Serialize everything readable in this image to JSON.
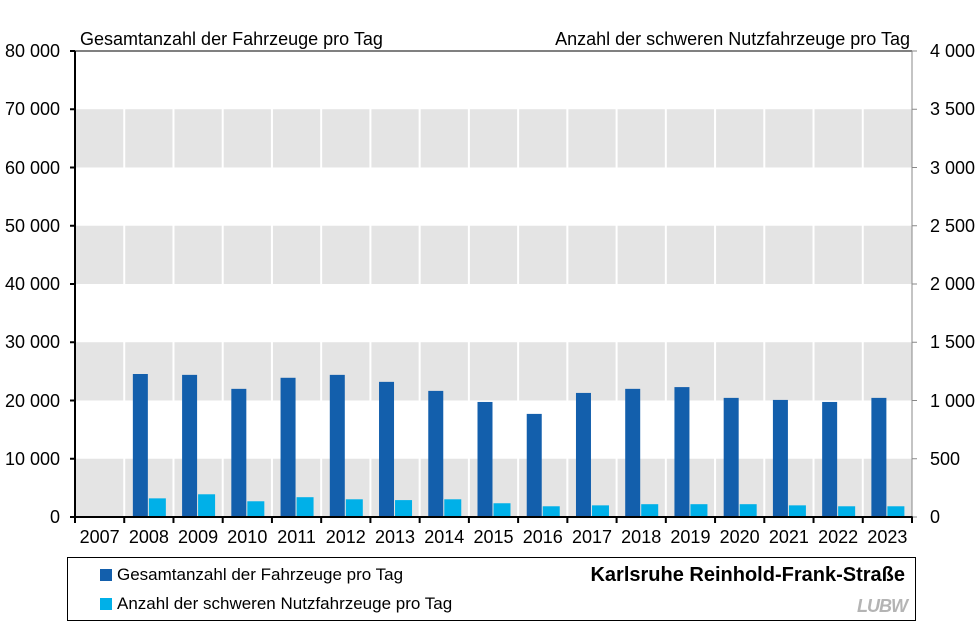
{
  "chart_data": {
    "type": "bar",
    "title_left": "Gesamtanzahl der Fahrzeuge pro Tag",
    "title_right": "Anzahl der schweren Nutzfahrzeuge pro Tag",
    "location": "Karlsruhe Reinhold-Frank-Straße",
    "categories": [
      "2007",
      "2008",
      "2009",
      "2010",
      "2011",
      "2012",
      "2013",
      "2014",
      "2015",
      "2016",
      "2017",
      "2018",
      "2019",
      "2020",
      "2021",
      "2022",
      "2023"
    ],
    "series": [
      {
        "name": "Gesamtanzahl der Fahrzeuge pro Tag",
        "axis": "left",
        "color": "#135fac",
        "values": [
          null,
          24550,
          24400,
          22000,
          23900,
          24400,
          23200,
          21650,
          19750,
          17700,
          21300,
          22000,
          22300,
          20450,
          20100,
          19750,
          20450
        ]
      },
      {
        "name": "Anzahl der schweren Nutzfahrzeuge pro Tag",
        "axis": "right",
        "color": "#00b0e8",
        "values": [
          null,
          160,
          195,
          135,
          170,
          152,
          145,
          152,
          118,
          92,
          100,
          110,
          110,
          110,
          100,
          92,
          92
        ]
      }
    ],
    "y_left": {
      "range": [
        0,
        80000
      ],
      "ticks": [
        "0",
        "10 000",
        "20 000",
        "30 000",
        "40 000",
        "50 000",
        "60 000",
        "70 000",
        "80 000"
      ]
    },
    "y_right": {
      "range": [
        0,
        4000
      ],
      "ticks": [
        "0",
        "500",
        "1 000",
        "1 500",
        "2 000",
        "2 500",
        "3 000",
        "3 500",
        "4 000"
      ]
    },
    "xlabel": "",
    "ylabel": "",
    "grid": "alternating gray bands",
    "legend_position": "bottom"
  },
  "legend": {
    "item1": "Gesamtanzahl der Fahrzeuge pro Tag",
    "item2": "Anzahl der schweren Nutzfahrzeuge pro Tag",
    "location": "Karlsruhe Reinhold-Frank-Straße",
    "logo": "LUBW"
  },
  "colors": {
    "dark_bar": "#135fac",
    "light_bar": "#00b0e8",
    "band": "#e4e4e4"
  }
}
